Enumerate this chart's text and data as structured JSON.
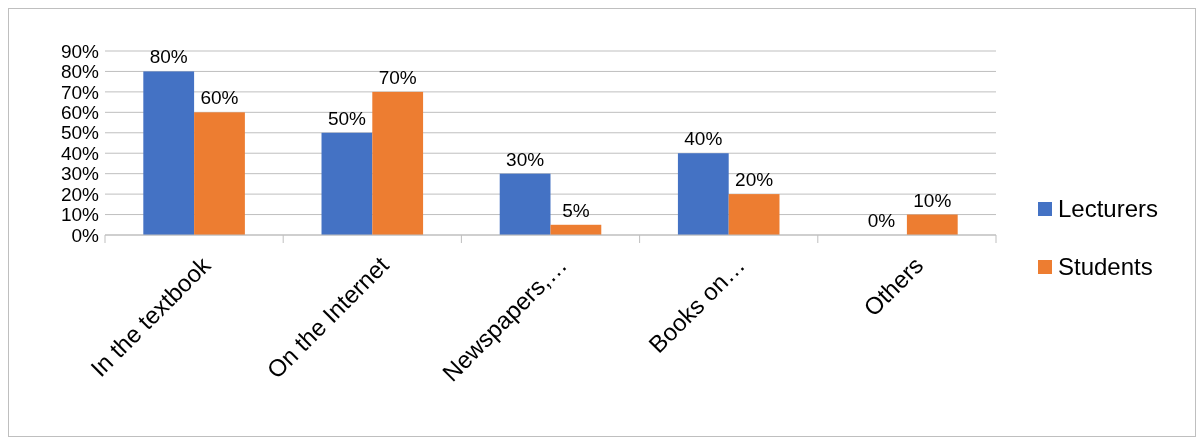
{
  "chart_data": {
    "type": "bar",
    "categories": [
      "In the textbook",
      "On the Internet",
      "Newspapers,…",
      "Books on…",
      "Others"
    ],
    "series": [
      {
        "name": "Lecturers",
        "color": "#4472c4",
        "values": [
          80,
          50,
          30,
          40,
          0
        ],
        "value_labels": [
          "80%",
          "50%",
          "30%",
          "40%",
          "0%"
        ]
      },
      {
        "name": "Students",
        "color": "#ed7d31",
        "values": [
          60,
          70,
          5,
          20,
          10
        ],
        "value_labels": [
          "60%",
          "70%",
          "5%",
          "20%",
          "10%"
        ]
      }
    ],
    "ylim": [
      0,
      90
    ],
    "yticks": [
      {
        "value": 0,
        "label": "0%"
      },
      {
        "value": 10,
        "label": "10%"
      },
      {
        "value": 20,
        "label": "20%"
      },
      {
        "value": 30,
        "label": "30%"
      },
      {
        "value": 40,
        "label": "40%"
      },
      {
        "value": 50,
        "label": "50%"
      },
      {
        "value": 60,
        "label": "60%"
      },
      {
        "value": 70,
        "label": "70%"
      },
      {
        "value": 80,
        "label": "80%"
      },
      {
        "value": 90,
        "label": "90%"
      }
    ],
    "grid": "y",
    "legend": "right"
  }
}
